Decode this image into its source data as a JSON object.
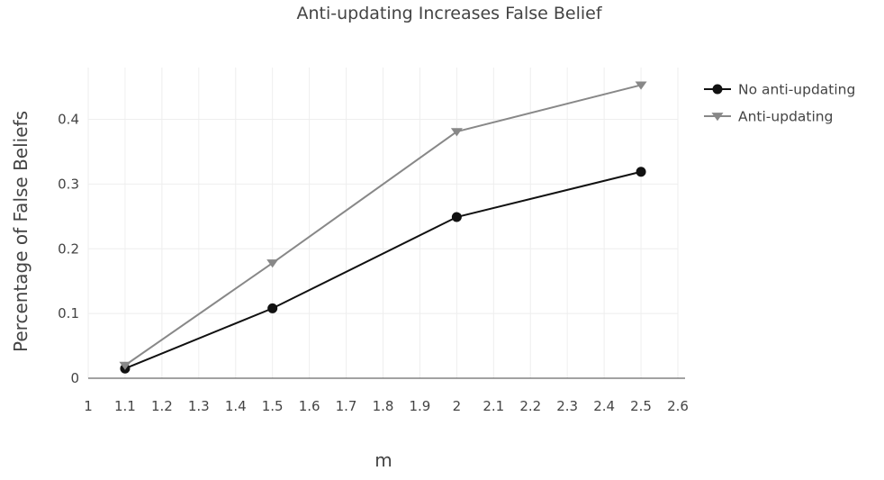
{
  "chart_data": {
    "type": "line",
    "title": "Anti-updating Increases False Belief",
    "xlabel": "m",
    "ylabel": "Percentage of False Beliefs",
    "xlim": [
      1,
      2.6
    ],
    "ylim": [
      0,
      0.48
    ],
    "x_ticks": [
      "1",
      "1.1",
      "1.2",
      "1.3",
      "1.4",
      "1.5",
      "1.6",
      "1.7",
      "1.8",
      "1.9",
      "2",
      "2.1",
      "2.2",
      "2.3",
      "2.4",
      "2.5",
      "2.6"
    ],
    "y_ticks": [
      "0",
      "0.1",
      "0.2",
      "0.3",
      "0.4"
    ],
    "grid": true,
    "legend_position": "top-right",
    "series": [
      {
        "name": "No anti-updating",
        "marker": "circle",
        "color": "#111111",
        "x": [
          1.1,
          1.5,
          2,
          2.5
        ],
        "y": [
          0.015,
          0.108,
          0.249,
          0.319
        ]
      },
      {
        "name": "Anti-updating",
        "marker": "triangle-down",
        "color": "#888888",
        "x": [
          1.1,
          1.5,
          2,
          2.5
        ],
        "y": [
          0.02,
          0.178,
          0.381,
          0.453
        ]
      }
    ]
  }
}
